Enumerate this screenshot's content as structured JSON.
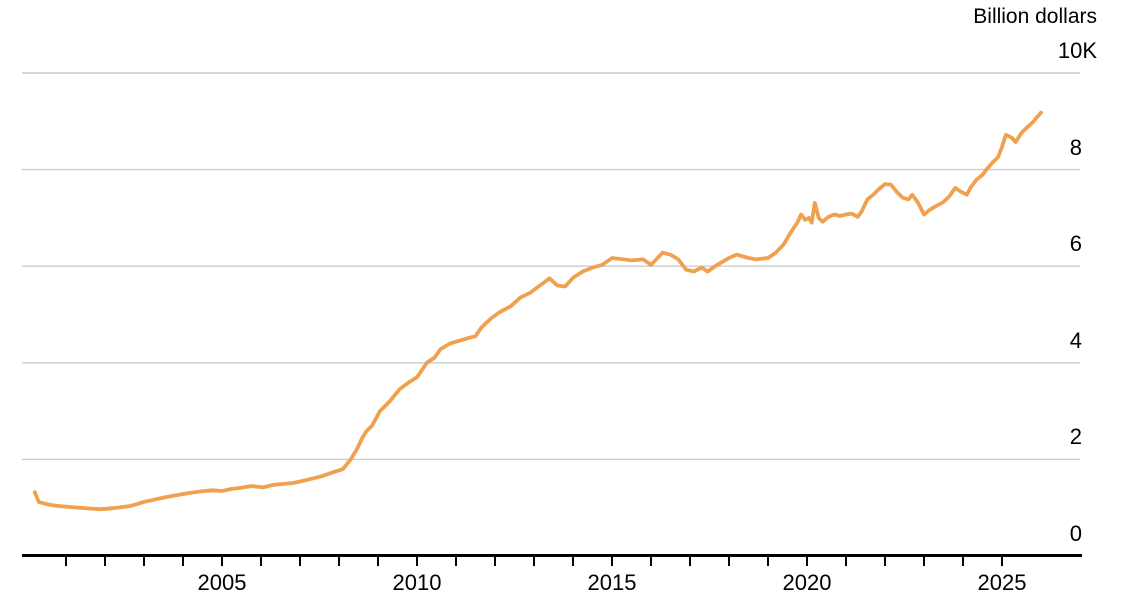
{
  "chart_data": {
    "type": "line",
    "title": "Billion dollars",
    "unit_label": "Billion dollars",
    "legend": "none",
    "grid": "horizontal-only",
    "x_axis": {
      "min": 1999.9,
      "max": 2027.0,
      "tick_years": [
        2001,
        2002,
        2003,
        2004,
        2005,
        2006,
        2007,
        2008,
        2009,
        2010,
        2011,
        2012,
        2013,
        2014,
        2015,
        2016,
        2017,
        2018,
        2019,
        2020,
        2021,
        2022,
        2023,
        2024,
        2025
      ],
      "labeled_years": [
        2005,
        2010,
        2015,
        2020,
        2025
      ]
    },
    "y_axis": {
      "min": 0,
      "max": 10000,
      "unit": "Billion dollars",
      "ticks": [
        {
          "value": 0,
          "label": "0"
        },
        {
          "value": 2000,
          "label": "2"
        },
        {
          "value": 4000,
          "label": "4"
        },
        {
          "value": 6000,
          "label": "6"
        },
        {
          "value": 8000,
          "label": "8"
        },
        {
          "value": 10000,
          "label": "10K"
        }
      ]
    },
    "colors": {
      "line": "#F0A14F",
      "grid": "#CBCBCB",
      "axis": "#000000",
      "text": "#000000",
      "background": "#FFFFFF"
    },
    "series": [
      {
        "name": "billion-dollars-series",
        "points": [
          [
            2000.2,
            1320
          ],
          [
            2000.3,
            1120
          ],
          [
            2000.5,
            1075
          ],
          [
            2000.7,
            1045
          ],
          [
            2000.9,
            1030
          ],
          [
            2001.1,
            1015
          ],
          [
            2001.3,
            1000
          ],
          [
            2001.55,
            985
          ],
          [
            2001.85,
            968
          ],
          [
            2002.05,
            978
          ],
          [
            2002.2,
            990
          ],
          [
            2002.4,
            1010
          ],
          [
            2002.65,
            1035
          ],
          [
            2002.8,
            1070
          ],
          [
            2003.0,
            1120
          ],
          [
            2003.2,
            1155
          ],
          [
            2003.45,
            1200
          ],
          [
            2003.7,
            1240
          ],
          [
            2003.95,
            1275
          ],
          [
            2004.2,
            1310
          ],
          [
            2004.5,
            1340
          ],
          [
            2004.75,
            1360
          ],
          [
            2005.0,
            1345
          ],
          [
            2005.25,
            1390
          ],
          [
            2005.5,
            1415
          ],
          [
            2005.75,
            1450
          ],
          [
            2006.05,
            1420
          ],
          [
            2006.3,
            1470
          ],
          [
            2006.55,
            1490
          ],
          [
            2006.8,
            1510
          ],
          [
            2007.05,
            1550
          ],
          [
            2007.3,
            1600
          ],
          [
            2007.55,
            1650
          ],
          [
            2007.8,
            1720
          ],
          [
            2008.1,
            1800
          ],
          [
            2008.3,
            2000
          ],
          [
            2008.45,
            2200
          ],
          [
            2008.6,
            2450
          ],
          [
            2008.7,
            2580
          ],
          [
            2008.85,
            2700
          ],
          [
            2009.05,
            3000
          ],
          [
            2009.3,
            3200
          ],
          [
            2009.55,
            3450
          ],
          [
            2009.8,
            3600
          ],
          [
            2010.0,
            3700
          ],
          [
            2010.25,
            4000
          ],
          [
            2010.45,
            4110
          ],
          [
            2010.6,
            4280
          ],
          [
            2010.85,
            4400
          ],
          [
            2011.1,
            4460
          ],
          [
            2011.35,
            4520
          ],
          [
            2011.5,
            4550
          ],
          [
            2011.65,
            4730
          ],
          [
            2011.9,
            4920
          ],
          [
            2012.1,
            5040
          ],
          [
            2012.4,
            5170
          ],
          [
            2012.65,
            5350
          ],
          [
            2012.9,
            5450
          ],
          [
            2013.15,
            5600
          ],
          [
            2013.4,
            5750
          ],
          [
            2013.6,
            5600
          ],
          [
            2013.8,
            5580
          ],
          [
            2014.0,
            5760
          ],
          [
            2014.25,
            5890
          ],
          [
            2014.5,
            5970
          ],
          [
            2014.75,
            6030
          ],
          [
            2015.0,
            6170
          ],
          [
            2015.3,
            6140
          ],
          [
            2015.5,
            6120
          ],
          [
            2015.8,
            6140
          ],
          [
            2016.0,
            6030
          ],
          [
            2016.3,
            6280
          ],
          [
            2016.5,
            6240
          ],
          [
            2016.7,
            6140
          ],
          [
            2016.9,
            5930
          ],
          [
            2017.1,
            5890
          ],
          [
            2017.3,
            5970
          ],
          [
            2017.45,
            5890
          ],
          [
            2017.7,
            6030
          ],
          [
            2018.0,
            6170
          ],
          [
            2018.2,
            6240
          ],
          [
            2018.5,
            6170
          ],
          [
            2018.7,
            6140
          ],
          [
            2019.0,
            6170
          ],
          [
            2019.2,
            6280
          ],
          [
            2019.4,
            6450
          ],
          [
            2019.6,
            6720
          ],
          [
            2019.75,
            6900
          ],
          [
            2019.85,
            7070
          ],
          [
            2019.95,
            6960
          ],
          [
            2020.05,
            7000
          ],
          [
            2020.12,
            6900
          ],
          [
            2020.2,
            7310
          ],
          [
            2020.3,
            7000
          ],
          [
            2020.4,
            6920
          ],
          [
            2020.55,
            7020
          ],
          [
            2020.7,
            7070
          ],
          [
            2020.85,
            7040
          ],
          [
            2021.0,
            7070
          ],
          [
            2021.15,
            7090
          ],
          [
            2021.3,
            7020
          ],
          [
            2021.4,
            7130
          ],
          [
            2021.55,
            7380
          ],
          [
            2021.7,
            7480
          ],
          [
            2021.85,
            7600
          ],
          [
            2022.0,
            7700
          ],
          [
            2022.15,
            7690
          ],
          [
            2022.3,
            7540
          ],
          [
            2022.45,
            7420
          ],
          [
            2022.6,
            7380
          ],
          [
            2022.7,
            7480
          ],
          [
            2022.85,
            7310
          ],
          [
            2023.0,
            7070
          ],
          [
            2023.15,
            7170
          ],
          [
            2023.3,
            7240
          ],
          [
            2023.5,
            7330
          ],
          [
            2023.65,
            7450
          ],
          [
            2023.8,
            7620
          ],
          [
            2023.95,
            7540
          ],
          [
            2024.1,
            7480
          ],
          [
            2024.2,
            7640
          ],
          [
            2024.35,
            7790
          ],
          [
            2024.5,
            7890
          ],
          [
            2024.6,
            8000
          ],
          [
            2024.75,
            8140
          ],
          [
            2024.9,
            8260
          ],
          [
            2025.0,
            8470
          ],
          [
            2025.1,
            8720
          ],
          [
            2025.25,
            8660
          ],
          [
            2025.35,
            8570
          ],
          [
            2025.5,
            8760
          ],
          [
            2025.65,
            8880
          ],
          [
            2025.8,
            8990
          ],
          [
            2025.9,
            9090
          ],
          [
            2026.0,
            9180
          ]
        ]
      }
    ]
  }
}
